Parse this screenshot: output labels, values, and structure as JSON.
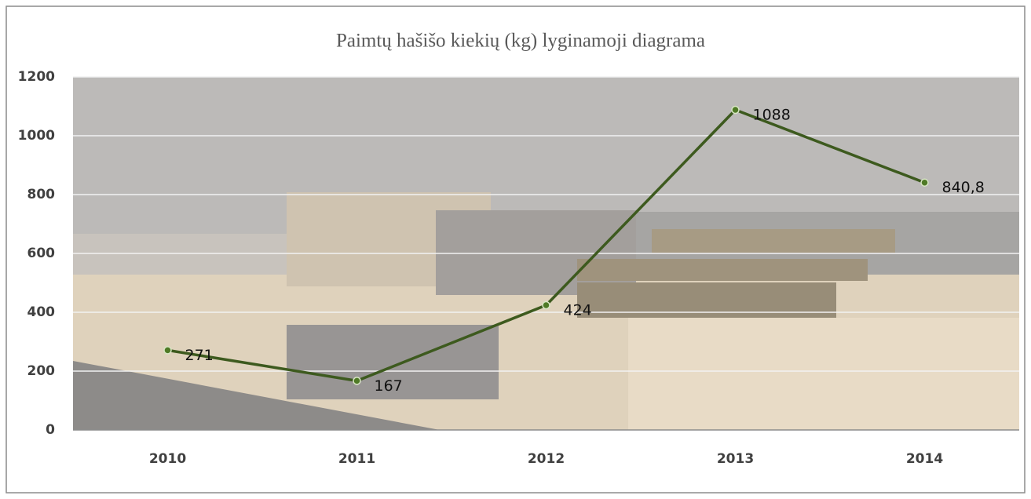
{
  "chart_data": {
    "type": "line",
    "title": "Paimtų hašišo kiekių (kg) lyginamoji  diagrama",
    "categories": [
      "2010",
      "2011",
      "2012",
      "2013",
      "2014"
    ],
    "values": [
      271,
      167,
      424,
      1088,
      840.8
    ],
    "value_labels": [
      "271",
      "167",
      "424",
      "1088",
      "840,8"
    ],
    "color": "#3d5a1e",
    "ylim": [
      0,
      1200
    ],
    "yticks": [
      0,
      200,
      400,
      600,
      800,
      1000,
      1200
    ],
    "grid": true
  }
}
